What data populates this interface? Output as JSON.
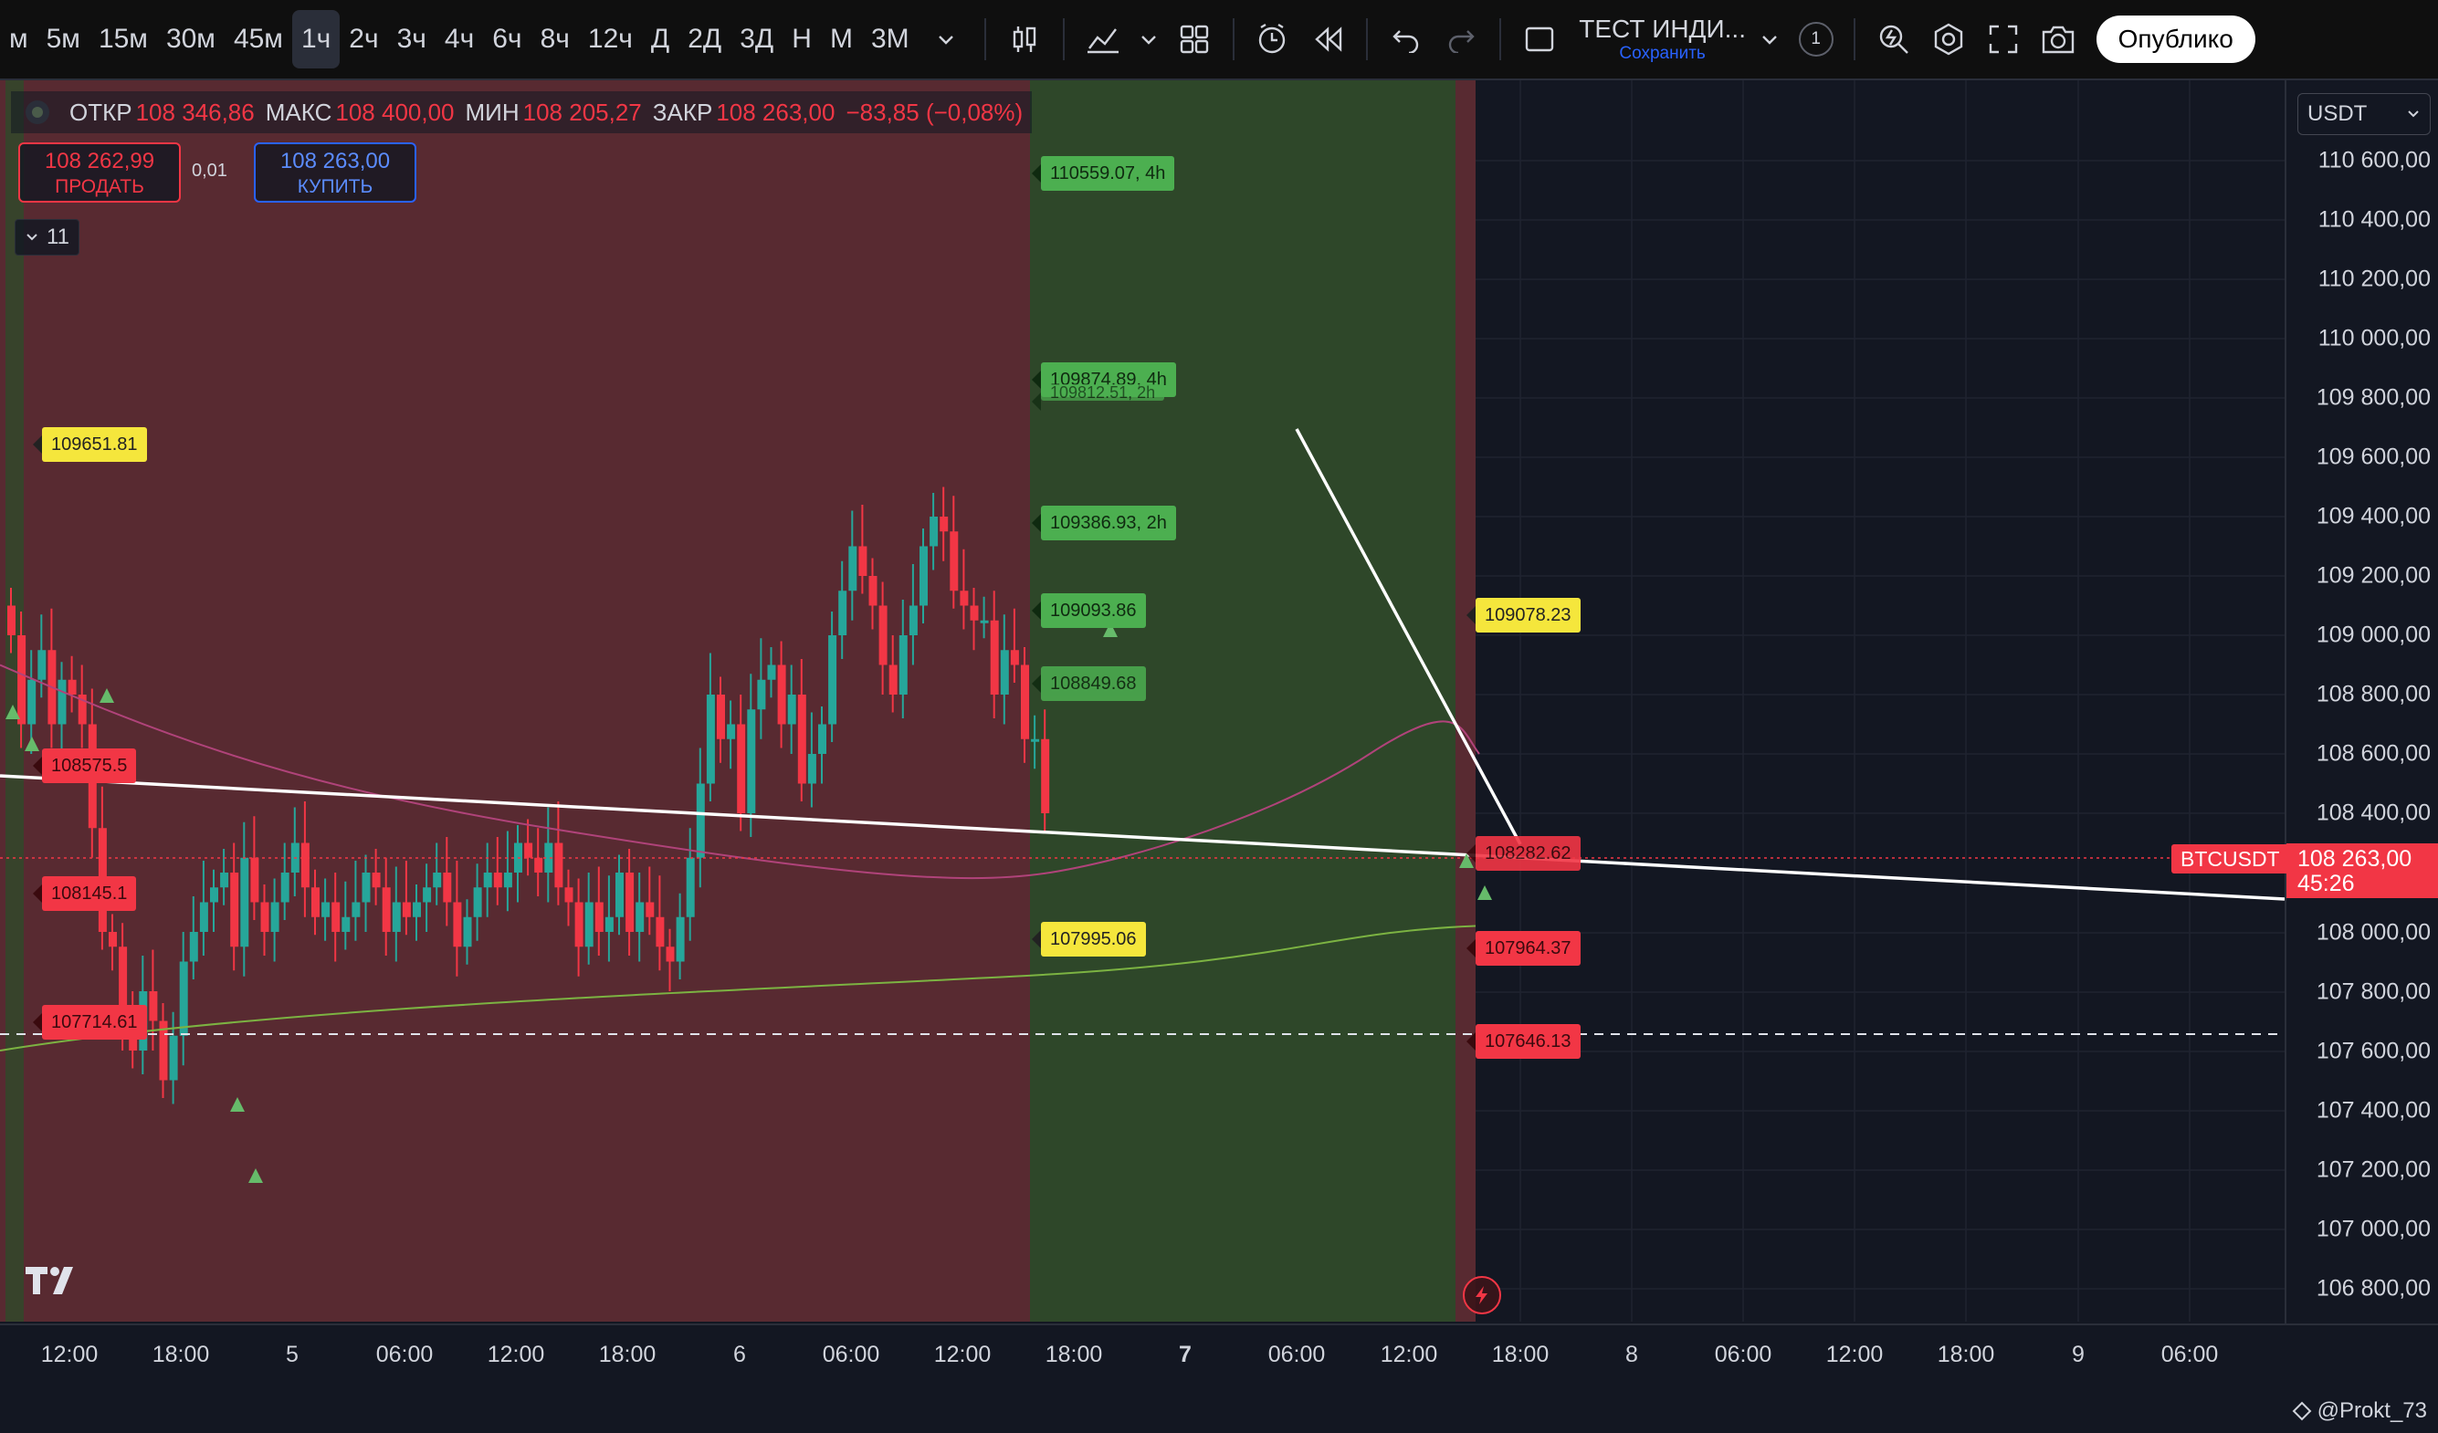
{
  "toolbar": {
    "timeframes": [
      "м",
      "5м",
      "15м",
      "30м",
      "45м",
      "1ч",
      "2ч",
      "3ч",
      "4ч",
      "6ч",
      "8ч",
      "12ч",
      "Д",
      "2Д",
      "3Д",
      "Н",
      "М",
      "3М"
    ],
    "active_timeframe": "1ч",
    "layout_name": "ТЕСТ ИНДИ...",
    "save_label": "Сохранить",
    "badge_count": "1",
    "publish_label": "Опублико"
  },
  "ohlc": {
    "open_key": "ОТКР",
    "open": "108 346,86",
    "high_key": "МАКС",
    "high": "108 400,00",
    "low_key": "МИН",
    "low": "108 205,27",
    "close_key": "ЗАКР",
    "close": "108 263,00",
    "change": "−83,85 (−0,08%)"
  },
  "trade": {
    "sell_price": "108 262,99",
    "sell_label": "ПРОДАТЬ",
    "spread": "0,01",
    "buy_price": "108 263,00",
    "buy_label": "КУПИТЬ"
  },
  "indicators_toggle": "11",
  "currency": "USDT",
  "price_axis": [
    "110 600,00",
    "110 400,00",
    "110 200,00",
    "110 000,00",
    "109 800,00",
    "109 600,00",
    "109 400,00",
    "109 200,00",
    "109 000,00",
    "108 800,00",
    "108 600,00",
    "108 400,00",
    "108 000,00",
    "107 800,00",
    "107 600,00",
    "107 400,00",
    "107 200,00",
    "107 000,00",
    "106 800,00"
  ],
  "time_axis": [
    "12:00",
    "18:00",
    "5",
    "06:00",
    "12:00",
    "18:00",
    "6",
    "06:00",
    "12:00",
    "18:00",
    "7",
    "06:00",
    "12:00",
    "18:00",
    "8",
    "06:00",
    "12:00",
    "18:00",
    "9",
    "06:00"
  ],
  "symbol": "BTCUSDT",
  "last_price": "108 263,00",
  "countdown": "45:26",
  "watermark": "@Prokt_73",
  "tags": {
    "g1": "110559.07, 4h",
    "g2": "109874.89, 4h",
    "g2b": "109812.51, 2h",
    "g3": "109386.93, 2h",
    "g4": "109093.86",
    "g5": "108849.68",
    "y1": "109651.81",
    "y2": "107995.06",
    "y3": "109078.23",
    "r1": "108575.5",
    "r2": "108145.1",
    "r3": "107714.61",
    "r4": "108282.62",
    "r5": "107964.37",
    "r6": "107646.13"
  },
  "colors": {
    "up": "#26a69a",
    "down": "#f23645",
    "bg": "#131722",
    "zone_red": "#5c2b33",
    "zone_green": "#2f4a2a"
  }
}
